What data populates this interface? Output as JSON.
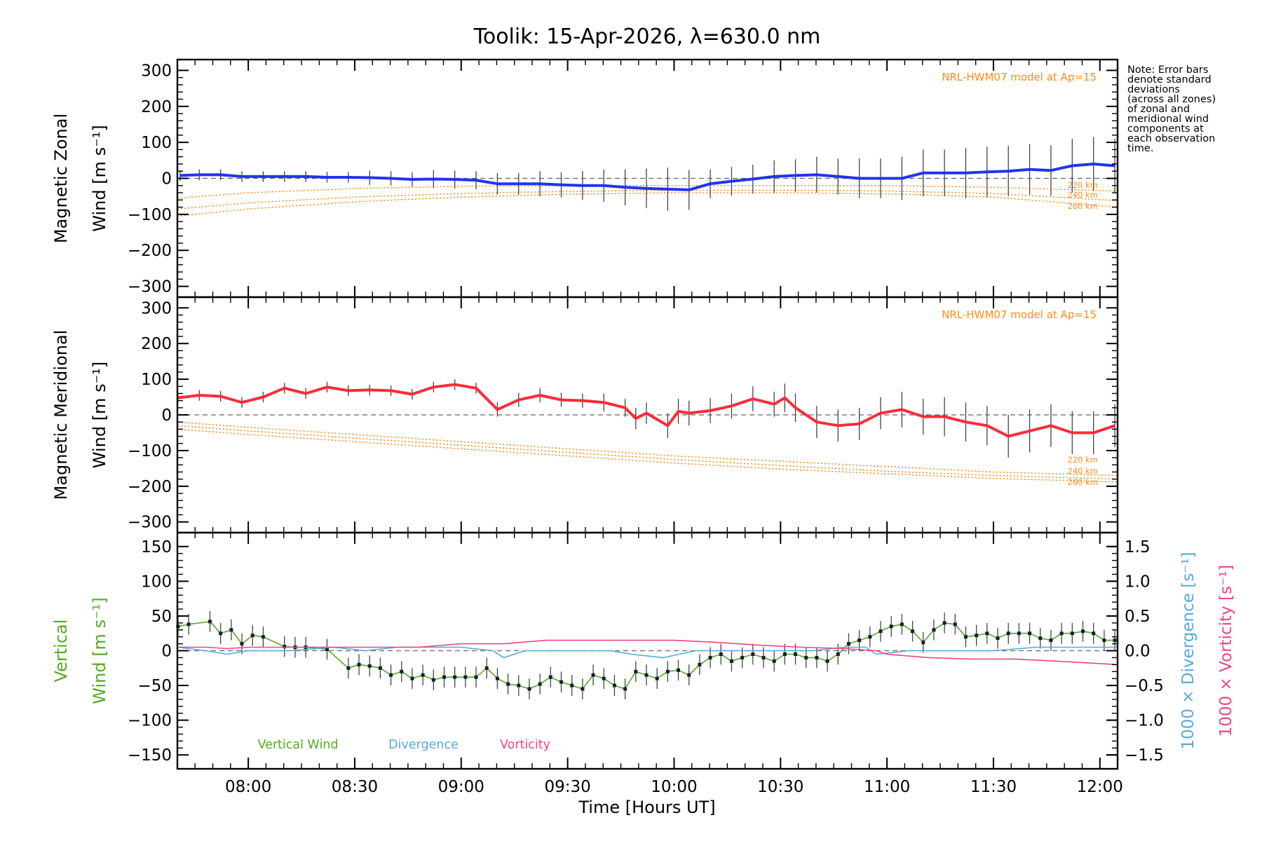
{
  "chart_data": {
    "type": "line",
    "title": "Toolik: 15-Apr-2026, λ=630.0 nm",
    "xlabel": "Time [Hours UT]",
    "x_ticks": [
      "08:00",
      "08:30",
      "09:00",
      "09:30",
      "10:00",
      "10:30",
      "11:00",
      "11:30",
      "12:00"
    ],
    "xlim_hours": [
      7.667,
      12.083
    ],
    "note": [
      "Note: Error bars",
      "denote standard",
      "deviations",
      "(across all zones)",
      "of zonal and",
      "meridional wind",
      "components at",
      "each observation",
      "time."
    ],
    "panels": [
      {
        "id": "zonal",
        "ylabel_line1": "Magnetic Zonal",
        "ylabel_line2": "Wind [m s⁻¹]",
        "ylim": [
          -330,
          330
        ],
        "y_ticks": [
          300,
          200,
          100,
          0,
          -100,
          -200,
          -300
        ],
        "model_label": "NRL-HWM07 model at Ap=15",
        "model_altitudes": [
          "220 km",
          "240 km",
          "260 km"
        ],
        "series": [
          {
            "name": "Magnetic Zonal Wind",
            "color": "#2233ee",
            "x": [
              7.68,
              7.77,
              7.87,
              7.97,
              8.07,
              8.17,
              8.27,
              8.37,
              8.47,
              8.57,
              8.67,
              8.77,
              8.87,
              8.97,
              9.07,
              9.17,
              9.27,
              9.37,
              9.47,
              9.57,
              9.67,
              9.77,
              9.87,
              9.97,
              10.07,
              10.17,
              10.27,
              10.37,
              10.47,
              10.57,
              10.67,
              10.77,
              10.87,
              10.97,
              11.07,
              11.17,
              11.27,
              11.37,
              11.47,
              11.57,
              11.67,
              11.77,
              11.87,
              11.97,
              12.07
            ],
            "values": [
              8,
              10,
              10,
              5,
              5,
              5,
              5,
              3,
              3,
              2,
              0,
              -3,
              -2,
              -3,
              -5,
              -15,
              -15,
              -15,
              -18,
              -20,
              -20,
              -25,
              -28,
              -30,
              -32,
              -15,
              -8,
              -2,
              5,
              8,
              10,
              5,
              0,
              0,
              0,
              15,
              15,
              15,
              18,
              20,
              25,
              22,
              35,
              40,
              35
            ],
            "errors": [
              15,
              15,
              15,
              15,
              15,
              15,
              15,
              15,
              15,
              20,
              20,
              20,
              25,
              25,
              25,
              30,
              30,
              35,
              35,
              40,
              45,
              50,
              55,
              60,
              55,
              40,
              40,
              40,
              45,
              45,
              50,
              50,
              55,
              55,
              60,
              65,
              65,
              70,
              70,
              70,
              70,
              70,
              75,
              75,
              75
            ]
          },
          {
            "name": "NRL-HWM07 220 km",
            "color": "#ff8c1a",
            "x": [
              7.667,
              8.0,
              8.5,
              9.0,
              9.5,
              10.0,
              10.5,
              11.0,
              11.5,
              12.083
            ],
            "values": [
              -55,
              -40,
              -28,
              -22,
              -20,
              -20,
              -20,
              -20,
              -25,
              -35
            ]
          },
          {
            "name": "NRL-HWM07 240 km",
            "color": "#ff8c1a",
            "x": [
              7.667,
              8.0,
              8.5,
              9.0,
              9.5,
              10.0,
              10.5,
              11.0,
              11.5,
              12.083
            ],
            "values": [
              -85,
              -68,
              -52,
              -42,
              -36,
              -33,
              -33,
              -35,
              -42,
              -62
            ]
          },
          {
            "name": "NRL-HWM07 260 km",
            "color": "#ff8c1a",
            "x": [
              7.667,
              8.0,
              8.5,
              9.0,
              9.5,
              10.0,
              10.5,
              11.0,
              11.5,
              12.083
            ],
            "values": [
              -105,
              -85,
              -65,
              -52,
              -44,
              -40,
              -40,
              -43,
              -52,
              -80
            ]
          }
        ]
      },
      {
        "id": "meridional",
        "ylabel_line1": "Magnetic Meridional",
        "ylabel_line2": "Wind [m s⁻¹]",
        "ylim": [
          -330,
          330
        ],
        "y_ticks": [
          300,
          200,
          100,
          0,
          -100,
          -200,
          -300
        ],
        "model_label": "NRL-HWM07 model at Ap=15",
        "model_altitudes": [
          "220 km",
          "240 km",
          "260 km"
        ],
        "series": [
          {
            "name": "Magnetic Meridional Wind",
            "color": "#ff2a3a",
            "x": [
              7.67,
              7.77,
              7.87,
              7.97,
              8.07,
              8.17,
              8.27,
              8.37,
              8.47,
              8.57,
              8.67,
              8.77,
              8.87,
              8.97,
              9.07,
              9.17,
              9.27,
              9.37,
              9.47,
              9.57,
              9.67,
              9.77,
              9.82,
              9.87,
              9.97,
              10.02,
              10.07,
              10.17,
              10.27,
              10.37,
              10.47,
              10.52,
              10.57,
              10.67,
              10.77,
              10.87,
              10.97,
              11.07,
              11.17,
              11.27,
              11.37,
              11.47,
              11.57,
              11.67,
              11.77,
              11.87,
              11.97,
              12.07
            ],
            "values": [
              48,
              55,
              52,
              35,
              50,
              75,
              60,
              78,
              68,
              70,
              68,
              58,
              78,
              85,
              75,
              15,
              42,
              55,
              42,
              40,
              35,
              20,
              -10,
              5,
              -30,
              10,
              5,
              12,
              25,
              45,
              30,
              48,
              20,
              -20,
              -30,
              -25,
              5,
              15,
              -5,
              -5,
              -20,
              -30,
              -60,
              -45,
              -30,
              -50,
              -50,
              -30
            ],
            "errors": [
              15,
              15,
              15,
              15,
              15,
              15,
              15,
              15,
              15,
              15,
              15,
              15,
              15,
              15,
              15,
              20,
              20,
              20,
              20,
              20,
              25,
              25,
              30,
              30,
              35,
              35,
              35,
              35,
              35,
              35,
              35,
              40,
              40,
              45,
              45,
              45,
              45,
              50,
              50,
              55,
              55,
              55,
              60,
              60,
              60,
              60,
              60,
              60
            ]
          },
          {
            "name": "NRL-HWM07 220 km",
            "color": "#ff8c1a",
            "x": [
              7.667,
              8.0,
              8.5,
              9.0,
              9.5,
              10.0,
              10.5,
              11.0,
              11.5,
              12.083
            ],
            "values": [
              -20,
              -35,
              -55,
              -75,
              -95,
              -115,
              -130,
              -145,
              -160,
              -170
            ]
          },
          {
            "name": "NRL-HWM07 240 km",
            "color": "#ff8c1a",
            "x": [
              7.667,
              8.0,
              8.5,
              9.0,
              9.5,
              10.0,
              10.5,
              11.0,
              11.5,
              12.083
            ],
            "values": [
              -30,
              -45,
              -65,
              -85,
              -105,
              -125,
              -142,
              -158,
              -170,
              -180
            ]
          },
          {
            "name": "NRL-HWM07 260 km",
            "color": "#ff8c1a",
            "x": [
              7.667,
              8.0,
              8.5,
              9.0,
              9.5,
              10.0,
              10.5,
              11.0,
              11.5,
              12.083
            ],
            "values": [
              -40,
              -55,
              -75,
              -95,
              -115,
              -135,
              -152,
              -165,
              -178,
              -188
            ]
          }
        ]
      },
      {
        "id": "vertical",
        "ylabel_line1": "Vertical",
        "ylabel_line2": "Wind [m s⁻¹]",
        "ylim": [
          -170,
          170
        ],
        "y_ticks": [
          150,
          100,
          50,
          0,
          -50,
          -100,
          -150
        ],
        "right_axis": {
          "ylim": [
            -1.7,
            1.7
          ],
          "ticks": [
            "1.5",
            "1.0",
            "0.5",
            "0.0",
            "−0.5",
            "−1.0",
            "−1.5"
          ],
          "label_divergence": "1000 × Divergence [s⁻¹]",
          "label_vorticity": "1000 × Vorticity [s⁻¹]"
        },
        "legend": [
          "Vertical Wind",
          "Divergence",
          "Vorticity"
        ],
        "series": [
          {
            "name": "Vertical Wind",
            "color": "#55aa22",
            "x": [
              7.67,
              7.72,
              7.82,
              7.87,
              7.92,
              7.97,
              8.02,
              8.07,
              8.17,
              8.22,
              8.27,
              8.37,
              8.47,
              8.52,
              8.57,
              8.62,
              8.67,
              8.72,
              8.77,
              8.82,
              8.87,
              8.92,
              8.97,
              9.02,
              9.07,
              9.12,
              9.17,
              9.22,
              9.27,
              9.32,
              9.37,
              9.42,
              9.47,
              9.52,
              9.57,
              9.62,
              9.67,
              9.72,
              9.77,
              9.82,
              9.87,
              9.92,
              9.97,
              10.02,
              10.07,
              10.12,
              10.17,
              10.22,
              10.27,
              10.32,
              10.37,
              10.42,
              10.47,
              10.52,
              10.57,
              10.62,
              10.67,
              10.72,
              10.77,
              10.82,
              10.87,
              10.92,
              10.97,
              11.02,
              11.07,
              11.12,
              11.17,
              11.22,
              11.27,
              11.32,
              11.37,
              11.42,
              11.47,
              11.52,
              11.57,
              11.62,
              11.67,
              11.72,
              11.77,
              11.82,
              11.87,
              11.92,
              11.97,
              12.02,
              12.07
            ],
            "values": [
              35,
              38,
              42,
              25,
              30,
              10,
              22,
              20,
              6,
              5,
              5,
              2,
              -25,
              -20,
              -22,
              -25,
              -35,
              -30,
              -40,
              -35,
              -42,
              -38,
              -38,
              -38,
              -38,
              -25,
              -40,
              -48,
              -50,
              -55,
              -48,
              -38,
              -45,
              -50,
              -55,
              -35,
              -40,
              -50,
              -55,
              -30,
              -35,
              -40,
              -30,
              -28,
              -35,
              -20,
              -10,
              -5,
              -15,
              -10,
              -5,
              -10,
              -15,
              -5,
              -5,
              -10,
              -10,
              -15,
              -5,
              10,
              15,
              20,
              28,
              35,
              38,
              28,
              12,
              30,
              40,
              38,
              20,
              22,
              25,
              18,
              25,
              25,
              25,
              18,
              15,
              25,
              25,
              28,
              25,
              15,
              15
            ],
            "errors": [
              15,
              15,
              15,
              15,
              15,
              15,
              15,
              15,
              15,
              15,
              15,
              15,
              15,
              15,
              15,
              15,
              15,
              15,
              15,
              15,
              15,
              15,
              15,
              15,
              15,
              15,
              15,
              15,
              15,
              15,
              15,
              15,
              15,
              15,
              15,
              15,
              15,
              15,
              15,
              15,
              15,
              15,
              15,
              15,
              15,
              15,
              15,
              15,
              15,
              15,
              15,
              15,
              15,
              15,
              15,
              15,
              15,
              15,
              15,
              15,
              15,
              15,
              15,
              15,
              15,
              15,
              15,
              15,
              15,
              15,
              15,
              15,
              15,
              15,
              15,
              15,
              15,
              15,
              15,
              15,
              15,
              15,
              15,
              15,
              15
            ]
          },
          {
            "name": "Divergence",
            "color": "#55aadd",
            "axis": "right",
            "x": [
              7.667,
              7.8,
              7.9,
              8.0,
              8.2,
              8.4,
              8.55,
              8.7,
              8.9,
              9.0,
              9.15,
              9.2,
              9.3,
              9.5,
              9.7,
              9.8,
              9.95,
              10.1,
              10.3,
              10.5,
              10.65,
              10.8,
              10.9,
              10.95,
              11.1,
              11.3,
              11.5,
              11.7,
              11.9,
              12.083
            ],
            "values": [
              0.05,
              0.0,
              -0.05,
              0.0,
              0.0,
              0.05,
              0.0,
              0.05,
              0.05,
              0.05,
              0.0,
              -0.1,
              0.0,
              0.0,
              0.0,
              -0.05,
              -0.1,
              0.0,
              0.0,
              0.0,
              0.0,
              0.05,
              0.05,
              -0.05,
              0.0,
              0.0,
              0.0,
              0.05,
              0.05,
              0.05
            ]
          },
          {
            "name": "Vorticity",
            "color": "#ee4488",
            "axis": "right",
            "x": [
              7.667,
              7.8,
              7.9,
              8.0,
              8.2,
              8.4,
              8.6,
              8.8,
              9.0,
              9.2,
              9.4,
              9.6,
              9.8,
              10.0,
              10.2,
              10.4,
              10.6,
              10.8,
              10.95,
              11.0,
              11.2,
              11.4,
              11.6,
              11.8,
              12.083
            ],
            "values": [
              0.05,
              0.05,
              0.03,
              0.05,
              0.05,
              0.05,
              0.05,
              0.05,
              0.1,
              0.1,
              0.15,
              0.15,
              0.15,
              0.15,
              0.12,
              0.08,
              0.05,
              0.03,
              0.0,
              -0.05,
              -0.1,
              -0.12,
              -0.12,
              -0.15,
              -0.2
            ]
          }
        ]
      }
    ]
  }
}
